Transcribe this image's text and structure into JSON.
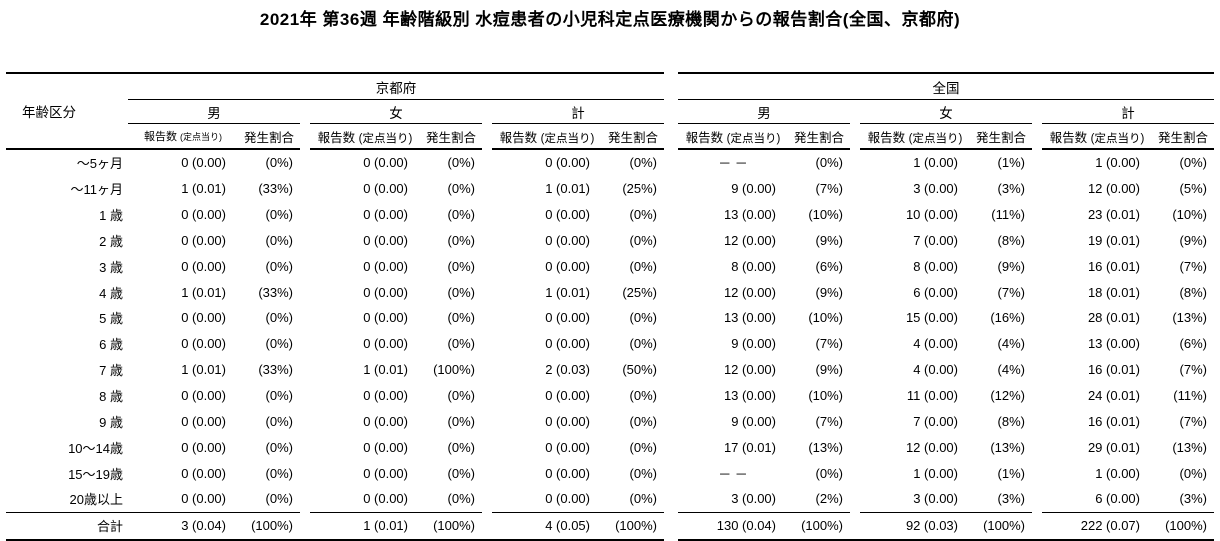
{
  "title": "2021年 第36週 年齢階級別 水痘患者の小児科定点医療機関からの報告割合(全国、京都府)",
  "chart_data": {
    "type": "table",
    "title": "2021年 第36週 年齢階級別 水痘患者の小児科定点医療機関からの報告割合(全国、京都府)",
    "age_column_header": "年齢区分",
    "sections": [
      {
        "label": "京都府",
        "groups": [
          {
            "label": "男"
          },
          {
            "label": "女"
          },
          {
            "label": "計"
          }
        ]
      },
      {
        "label": "全国",
        "groups": [
          {
            "label": "男"
          },
          {
            "label": "女"
          },
          {
            "label": "計"
          }
        ]
      }
    ],
    "sub_headers": {
      "report": "報告数",
      "report_paren": "(定点当り)",
      "rate": "発生割合"
    },
    "cell_order": [
      "京都府-男-報告数(定点当り)",
      "京都府-男-発生割合",
      "京都府-女-報告数(定点当り)",
      "京都府-女-発生割合",
      "京都府-計-報告数(定点当り)",
      "京都府-計-発生割合",
      "全国-男-報告数(定点当り)",
      "全国-男-発生割合",
      "全国-女-報告数(定点当り)",
      "全国-女-発生割合",
      "全国-計-報告数(定点当り)",
      "全国-計-発生割合"
    ],
    "rows": [
      {
        "age": "〜5ヶ月",
        "cells": [
          "0 (0.00)",
          "(0%)",
          "0 (0.00)",
          "(0%)",
          "0 (0.00)",
          "(0%)",
          "－ －",
          "(0%)",
          "1 (0.00)",
          "(1%)",
          "1 (0.00)",
          "(0%)"
        ]
      },
      {
        "age": "〜11ヶ月",
        "cells": [
          "1 (0.01)",
          "(33%)",
          "0 (0.00)",
          "(0%)",
          "1 (0.01)",
          "(25%)",
          "9 (0.00)",
          "(7%)",
          "3 (0.00)",
          "(3%)",
          "12 (0.00)",
          "(5%)"
        ]
      },
      {
        "age": "1 歳",
        "cells": [
          "0 (0.00)",
          "(0%)",
          "0 (0.00)",
          "(0%)",
          "0 (0.00)",
          "(0%)",
          "13 (0.00)",
          "(10%)",
          "10 (0.00)",
          "(11%)",
          "23 (0.01)",
          "(10%)"
        ]
      },
      {
        "age": "2 歳",
        "cells": [
          "0 (0.00)",
          "(0%)",
          "0 (0.00)",
          "(0%)",
          "0 (0.00)",
          "(0%)",
          "12 (0.00)",
          "(9%)",
          "7 (0.00)",
          "(8%)",
          "19 (0.01)",
          "(9%)"
        ]
      },
      {
        "age": "3 歳",
        "cells": [
          "0 (0.00)",
          "(0%)",
          "0 (0.00)",
          "(0%)",
          "0 (0.00)",
          "(0%)",
          "8 (0.00)",
          "(6%)",
          "8 (0.00)",
          "(9%)",
          "16 (0.01)",
          "(7%)"
        ]
      },
      {
        "age": "4 歳",
        "cells": [
          "1 (0.01)",
          "(33%)",
          "0 (0.00)",
          "(0%)",
          "1 (0.01)",
          "(25%)",
          "12 (0.00)",
          "(9%)",
          "6 (0.00)",
          "(7%)",
          "18 (0.01)",
          "(8%)"
        ]
      },
      {
        "age": "5 歳",
        "cells": [
          "0 (0.00)",
          "(0%)",
          "0 (0.00)",
          "(0%)",
          "0 (0.00)",
          "(0%)",
          "13 (0.00)",
          "(10%)",
          "15 (0.00)",
          "(16%)",
          "28 (0.01)",
          "(13%)"
        ]
      },
      {
        "age": "6 歳",
        "cells": [
          "0 (0.00)",
          "(0%)",
          "0 (0.00)",
          "(0%)",
          "0 (0.00)",
          "(0%)",
          "9 (0.00)",
          "(7%)",
          "4 (0.00)",
          "(4%)",
          "13 (0.00)",
          "(6%)"
        ]
      },
      {
        "age": "7 歳",
        "cells": [
          "1 (0.01)",
          "(33%)",
          "1 (0.01)",
          "(100%)",
          "2 (0.03)",
          "(50%)",
          "12 (0.00)",
          "(9%)",
          "4 (0.00)",
          "(4%)",
          "16 (0.01)",
          "(7%)"
        ]
      },
      {
        "age": "8 歳",
        "cells": [
          "0 (0.00)",
          "(0%)",
          "0 (0.00)",
          "(0%)",
          "0 (0.00)",
          "(0%)",
          "13 (0.00)",
          "(10%)",
          "11 (0.00)",
          "(12%)",
          "24 (0.01)",
          "(11%)"
        ]
      },
      {
        "age": "9 歳",
        "cells": [
          "0 (0.00)",
          "(0%)",
          "0 (0.00)",
          "(0%)",
          "0 (0.00)",
          "(0%)",
          "9 (0.00)",
          "(7%)",
          "7 (0.00)",
          "(8%)",
          "16 (0.01)",
          "(7%)"
        ]
      },
      {
        "age": "10〜14歳",
        "cells": [
          "0 (0.00)",
          "(0%)",
          "0 (0.00)",
          "(0%)",
          "0 (0.00)",
          "(0%)",
          "17 (0.01)",
          "(13%)",
          "12 (0.00)",
          "(13%)",
          "29 (0.01)",
          "(13%)"
        ]
      },
      {
        "age": "15〜19歳",
        "cells": [
          "0 (0.00)",
          "(0%)",
          "0 (0.00)",
          "(0%)",
          "0 (0.00)",
          "(0%)",
          "－ －",
          "(0%)",
          "1 (0.00)",
          "(1%)",
          "1 (0.00)",
          "(0%)"
        ]
      },
      {
        "age": "20歳以上",
        "cells": [
          "0 (0.00)",
          "(0%)",
          "0 (0.00)",
          "(0%)",
          "0 (0.00)",
          "(0%)",
          "3 (0.00)",
          "(2%)",
          "3 (0.00)",
          "(3%)",
          "6 (0.00)",
          "(3%)"
        ]
      },
      {
        "age": "合計",
        "total": true,
        "cells": [
          "3 (0.04)",
          "(100%)",
          "1 (0.01)",
          "(100%)",
          "4 (0.05)",
          "(100%)",
          "130 (0.04)",
          "(100%)",
          "92 (0.03)",
          "(100%)",
          "222 (0.07)",
          "(100%)"
        ]
      }
    ]
  }
}
